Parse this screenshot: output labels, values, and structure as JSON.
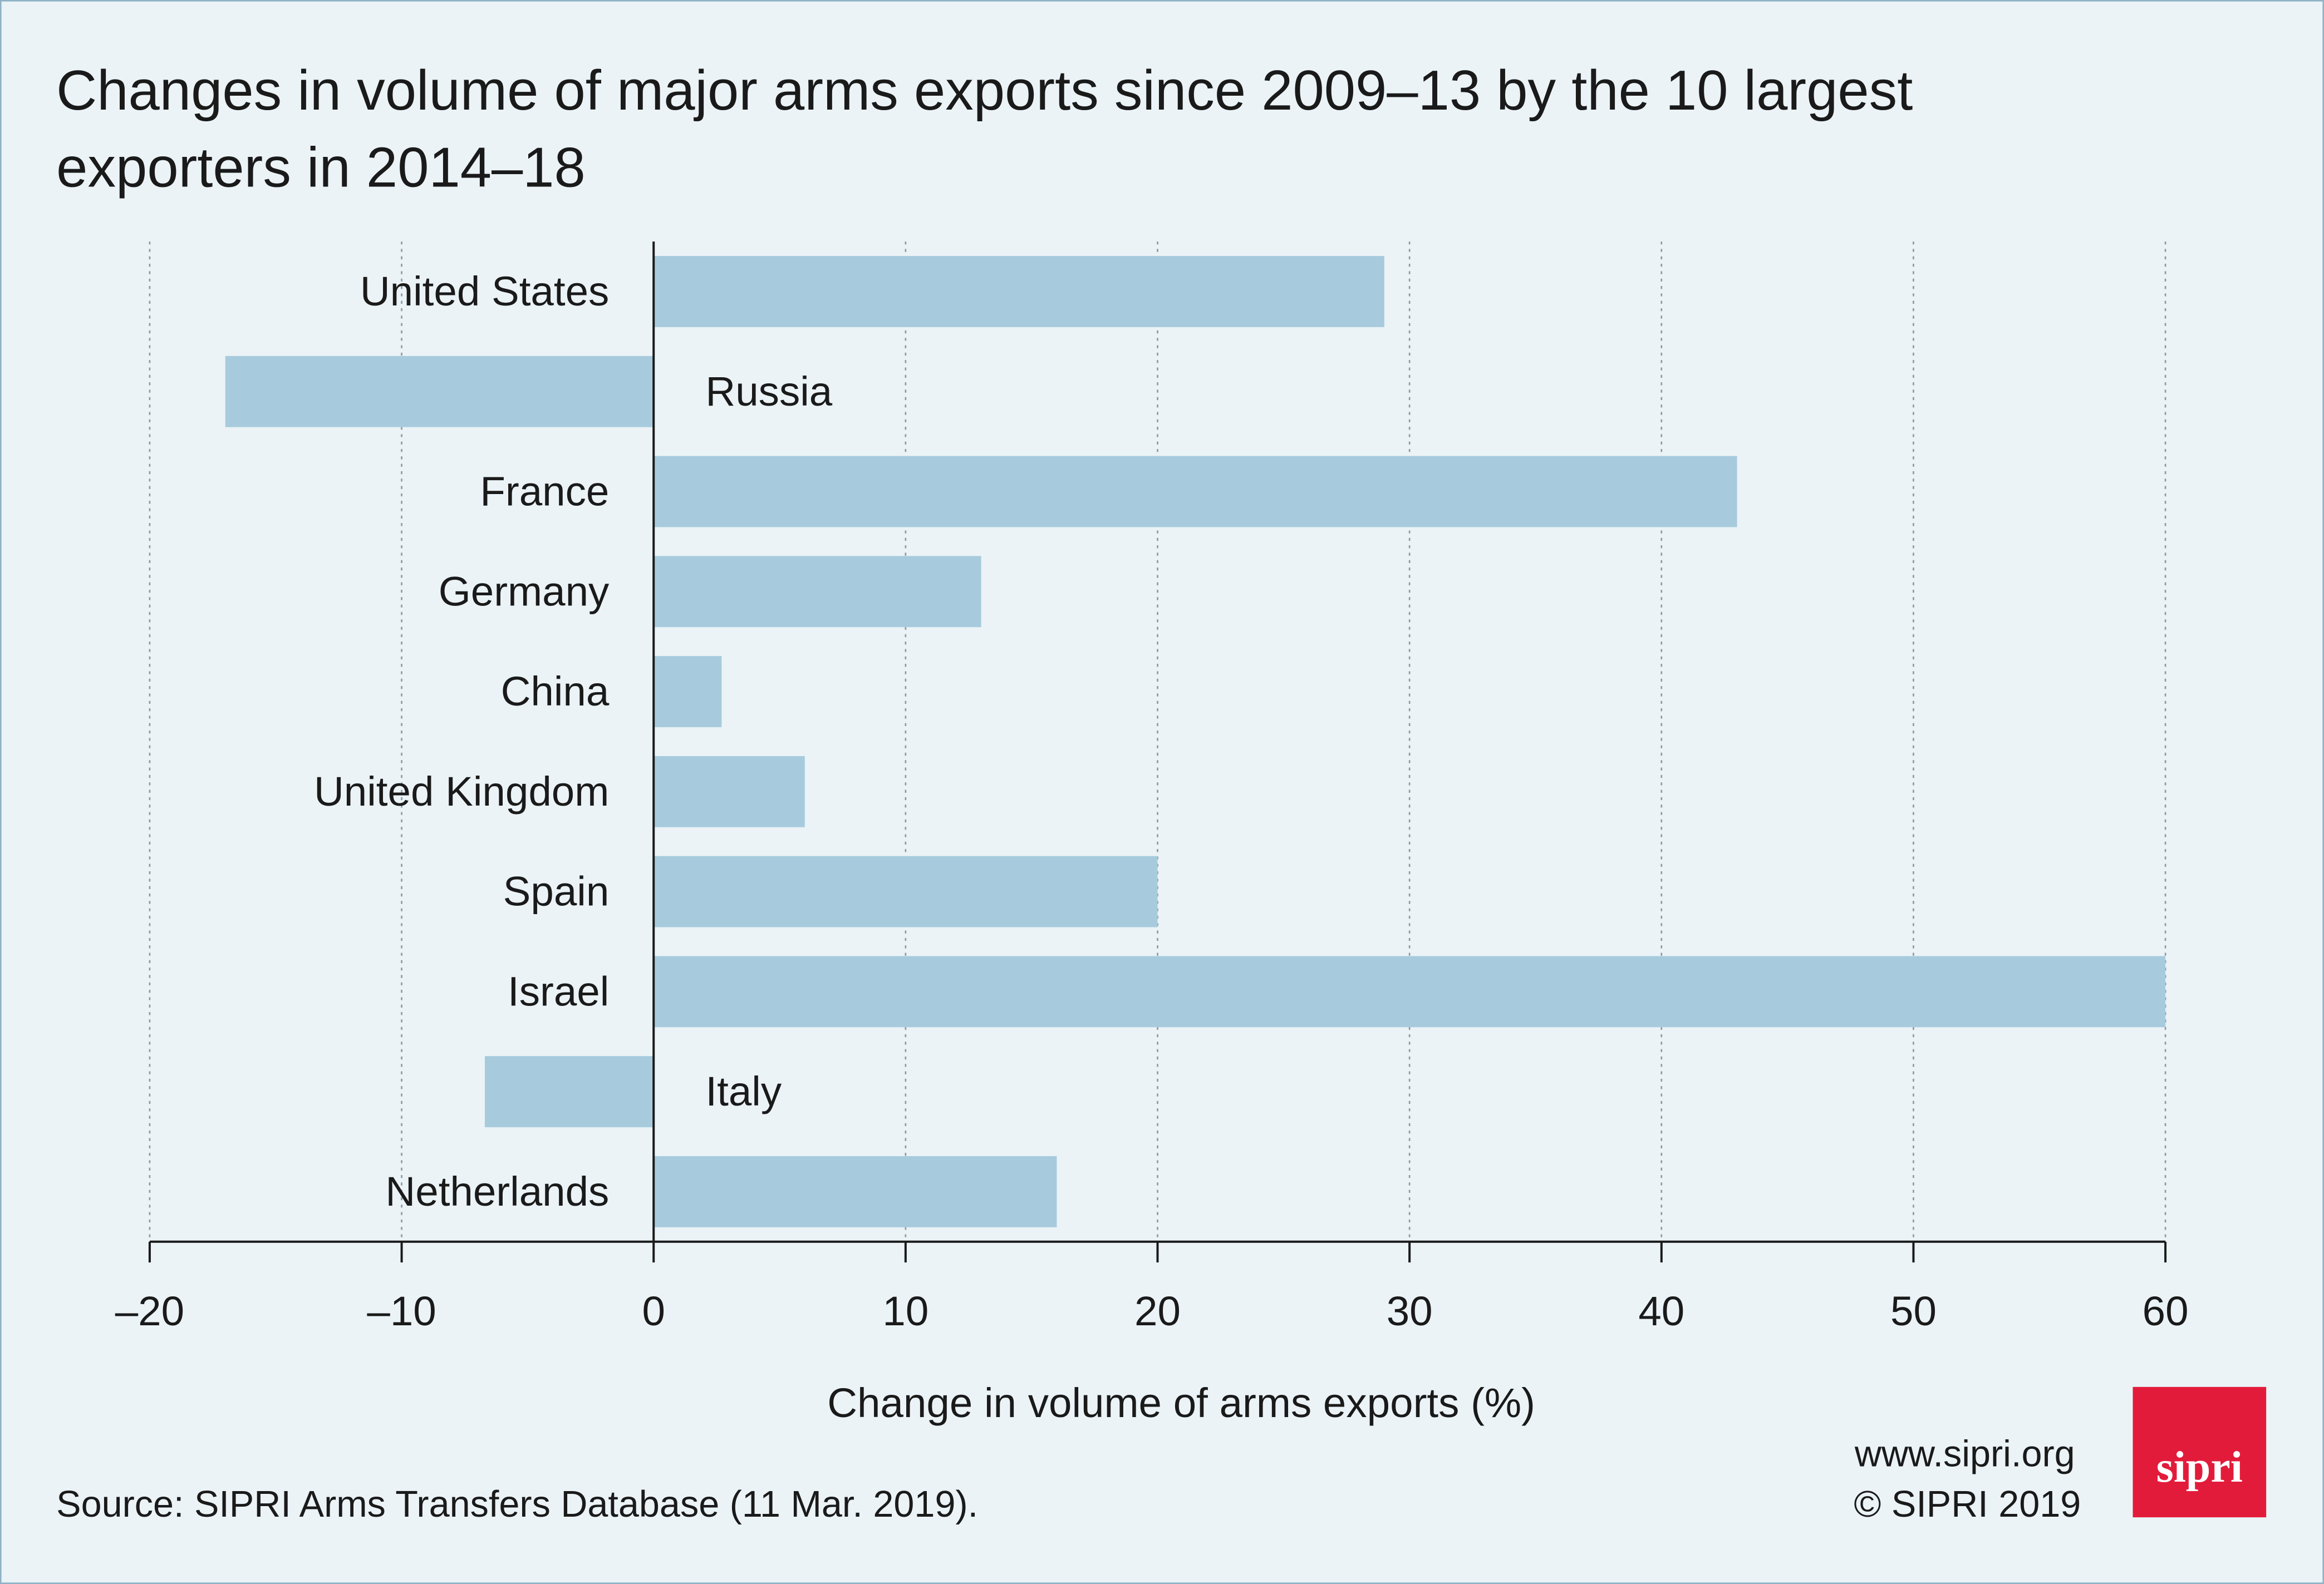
{
  "chart_data": {
    "type": "bar",
    "orientation": "horizontal",
    "title": "Changes in volume of major arms exports since 2009–13 by the 10 largest exporters in 2014–18",
    "xlabel": "Change in volume of arms exports (%)",
    "categories": [
      "United States",
      "Russia",
      "France",
      "Germany",
      "China",
      "United Kingdom",
      "Spain",
      "Israel",
      "Italy",
      "Netherlands"
    ],
    "values": [
      29,
      -17,
      43,
      13,
      2.7,
      6,
      20,
      60,
      -6.7,
      16
    ],
    "color": "#a7cbdd",
    "xlim": [
      -20,
      60
    ],
    "xticks": [
      {
        "value": -20,
        "label": "–20"
      },
      {
        "value": -10,
        "label": "–10"
      },
      0,
      10,
      20,
      30,
      40,
      50,
      60
    ],
    "grid": true
  },
  "footer": {
    "source": "Source: SIPRI Arms Transfers Database (11 Mar. 2019).",
    "website": "www.sipri.org",
    "copyright": "© SIPRI 2019",
    "logo": "sipri"
  }
}
